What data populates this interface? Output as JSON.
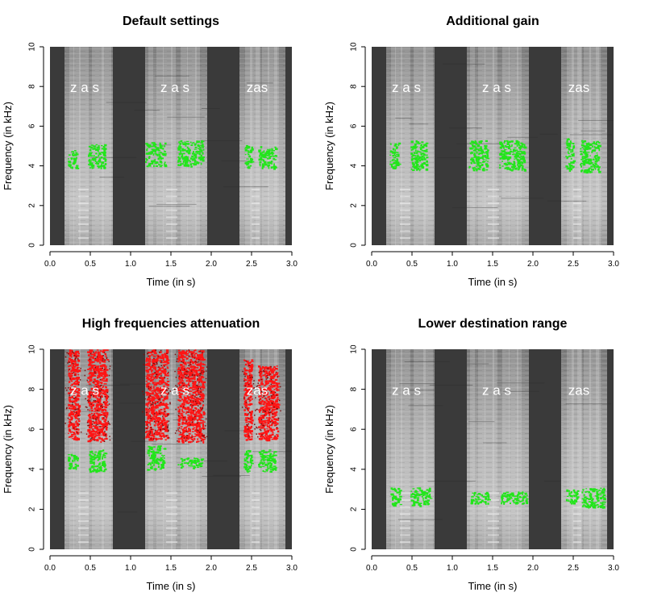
{
  "chart_data": [
    {
      "type": "heatmap",
      "title": "Default settings",
      "xlabel": "Time (in s)",
      "ylabel": "Frequency (in kHz)",
      "xlim": [
        0,
        3
      ],
      "ylim": [
        0,
        10
      ],
      "xticks": [
        "0.0",
        "0.5",
        "1.0",
        "1.5",
        "2.0",
        "2.5",
        "3.0"
      ],
      "yticks": [
        "0",
        "2",
        "4",
        "6",
        "8",
        "10"
      ],
      "word_labels": [
        {
          "text": "z a s",
          "t": 0.43,
          "f": 7.9
        },
        {
          "text": "z a  s",
          "t": 1.55,
          "f": 7.9
        },
        {
          "text": "zas",
          "t": 2.57,
          "f": 7.9
        }
      ],
      "overlays": [
        {
          "color": "green",
          "t0": 0.22,
          "t1": 0.33,
          "f0": 3.9,
          "f1": 4.8
        },
        {
          "color": "green",
          "t0": 0.47,
          "t1": 0.68,
          "f0": 3.9,
          "f1": 5.1
        },
        {
          "color": "green",
          "t0": 1.18,
          "t1": 1.42,
          "f0": 4.0,
          "f1": 5.2
        },
        {
          "color": "green",
          "t0": 1.58,
          "t1": 1.9,
          "f0": 4.0,
          "f1": 5.3
        },
        {
          "color": "green",
          "t0": 2.41,
          "t1": 2.5,
          "f0": 3.9,
          "f1": 5.1
        },
        {
          "color": "green",
          "t0": 2.58,
          "t1": 2.8,
          "f0": 3.9,
          "f1": 5.0
        }
      ]
    },
    {
      "type": "heatmap",
      "title": "Additional gain",
      "xlabel": "Time (in s)",
      "ylabel": "Frequency (in kHz)",
      "xlim": [
        0,
        3
      ],
      "ylim": [
        0,
        10
      ],
      "xticks": [
        "0.0",
        "0.5",
        "1.0",
        "1.5",
        "2.0",
        "2.5",
        "3.0"
      ],
      "yticks": [
        "0",
        "2",
        "4",
        "6",
        "8",
        "10"
      ],
      "word_labels": [
        {
          "text": "z a s",
          "t": 0.43,
          "f": 7.9
        },
        {
          "text": "z a  s",
          "t": 1.55,
          "f": 7.9
        },
        {
          "text": "zas",
          "t": 2.57,
          "f": 7.9
        }
      ],
      "overlays": [
        {
          "color": "green",
          "t0": 0.22,
          "t1": 0.33,
          "f0": 3.9,
          "f1": 5.2
        },
        {
          "color": "green",
          "t0": 0.48,
          "t1": 0.68,
          "f0": 3.8,
          "f1": 5.3
        },
        {
          "color": "green",
          "t0": 1.2,
          "t1": 1.44,
          "f0": 3.8,
          "f1": 5.3
        },
        {
          "color": "green",
          "t0": 1.58,
          "t1": 1.9,
          "f0": 3.8,
          "f1": 5.3
        },
        {
          "color": "green",
          "t0": 2.4,
          "t1": 2.5,
          "f0": 3.8,
          "f1": 5.4
        },
        {
          "color": "green",
          "t0": 2.58,
          "t1": 2.82,
          "f0": 3.7,
          "f1": 5.3
        }
      ]
    },
    {
      "type": "heatmap",
      "title": "High frequencies attenuation",
      "xlabel": "Time (in s)",
      "ylabel": "Frequency (in kHz)",
      "xlim": [
        0,
        3
      ],
      "ylim": [
        0,
        10
      ],
      "xticks": [
        "0.0",
        "0.5",
        "1.0",
        "1.5",
        "2.0",
        "2.5",
        "3.0"
      ],
      "yticks": [
        "0",
        "2",
        "4",
        "6",
        "8",
        "10"
      ],
      "word_labels": [
        {
          "text": "z a s",
          "t": 0.43,
          "f": 7.9
        },
        {
          "text": "z a  s",
          "t": 1.55,
          "f": 7.9
        },
        {
          "text": "zas",
          "t": 2.57,
          "f": 7.9
        }
      ],
      "overlays": [
        {
          "color": "red",
          "t0": 0.22,
          "t1": 0.35,
          "f0": 5.5,
          "f1": 10.0
        },
        {
          "color": "red",
          "t0": 0.46,
          "t1": 0.7,
          "f0": 5.4,
          "f1": 10.0
        },
        {
          "color": "red",
          "t0": 1.18,
          "t1": 1.45,
          "f0": 5.5,
          "f1": 10.0
        },
        {
          "color": "red",
          "t0": 1.58,
          "t1": 1.9,
          "f0": 5.4,
          "f1": 10.0
        },
        {
          "color": "red",
          "t0": 2.4,
          "t1": 2.5,
          "f0": 5.5,
          "f1": 9.5
        },
        {
          "color": "red",
          "t0": 2.58,
          "t1": 2.82,
          "f0": 5.5,
          "f1": 9.2
        },
        {
          "color": "green",
          "t0": 0.22,
          "t1": 0.33,
          "f0": 4.0,
          "f1": 4.8
        },
        {
          "color": "green",
          "t0": 0.48,
          "t1": 0.68,
          "f0": 3.9,
          "f1": 5.0
        },
        {
          "color": "green",
          "t0": 1.2,
          "t1": 1.42,
          "f0": 4.0,
          "f1": 5.2
        },
        {
          "color": "green",
          "t0": 1.58,
          "t1": 1.88,
          "f0": 4.1,
          "f1": 4.6
        },
        {
          "color": "green",
          "t0": 2.4,
          "t1": 2.5,
          "f0": 3.9,
          "f1": 5.0
        },
        {
          "color": "green",
          "t0": 2.58,
          "t1": 2.8,
          "f0": 3.9,
          "f1": 5.0
        }
      ]
    },
    {
      "type": "heatmap",
      "title": "Lower destination range",
      "xlabel": "Time (in s)",
      "ylabel": "Frequency (in kHz)",
      "xlim": [
        0,
        3
      ],
      "ylim": [
        0,
        10
      ],
      "xticks": [
        "0.0",
        "0.5",
        "1.0",
        "1.5",
        "2.0",
        "2.5",
        "3.0"
      ],
      "yticks": [
        "0",
        "2",
        "4",
        "6",
        "8",
        "10"
      ],
      "word_labels": [
        {
          "text": "z a s",
          "t": 0.43,
          "f": 7.9
        },
        {
          "text": "z a  s",
          "t": 1.55,
          "f": 7.9
        },
        {
          "text": "zas",
          "t": 2.57,
          "f": 7.9
        }
      ],
      "overlays": [
        {
          "color": "green",
          "t0": 0.22,
          "t1": 0.35,
          "f0": 2.2,
          "f1": 3.1
        },
        {
          "color": "green",
          "t0": 0.48,
          "t1": 0.72,
          "f0": 2.2,
          "f1": 3.1
        },
        {
          "color": "green",
          "t0": 1.22,
          "t1": 1.45,
          "f0": 2.3,
          "f1": 2.9
        },
        {
          "color": "green",
          "t0": 1.58,
          "t1": 1.92,
          "f0": 2.3,
          "f1": 2.9
        },
        {
          "color": "green",
          "t0": 2.4,
          "t1": 2.55,
          "f0": 2.3,
          "f1": 3.0
        },
        {
          "color": "green",
          "t0": 2.6,
          "t1": 2.88,
          "f0": 2.1,
          "f1": 3.1
        }
      ]
    }
  ],
  "spectrogram_background": {
    "dark_gaps_s": [
      [
        0.0,
        0.18
      ],
      [
        0.78,
        1.18
      ],
      [
        1.95,
        2.35
      ],
      [
        2.92,
        3.0
      ]
    ],
    "colors": {
      "dark": "#3a3a3a",
      "mid": "#8c8c8c",
      "light": "#c8c8c8",
      "green": "#22e51b",
      "red": "#ff1414",
      "text": "#000000"
    }
  }
}
